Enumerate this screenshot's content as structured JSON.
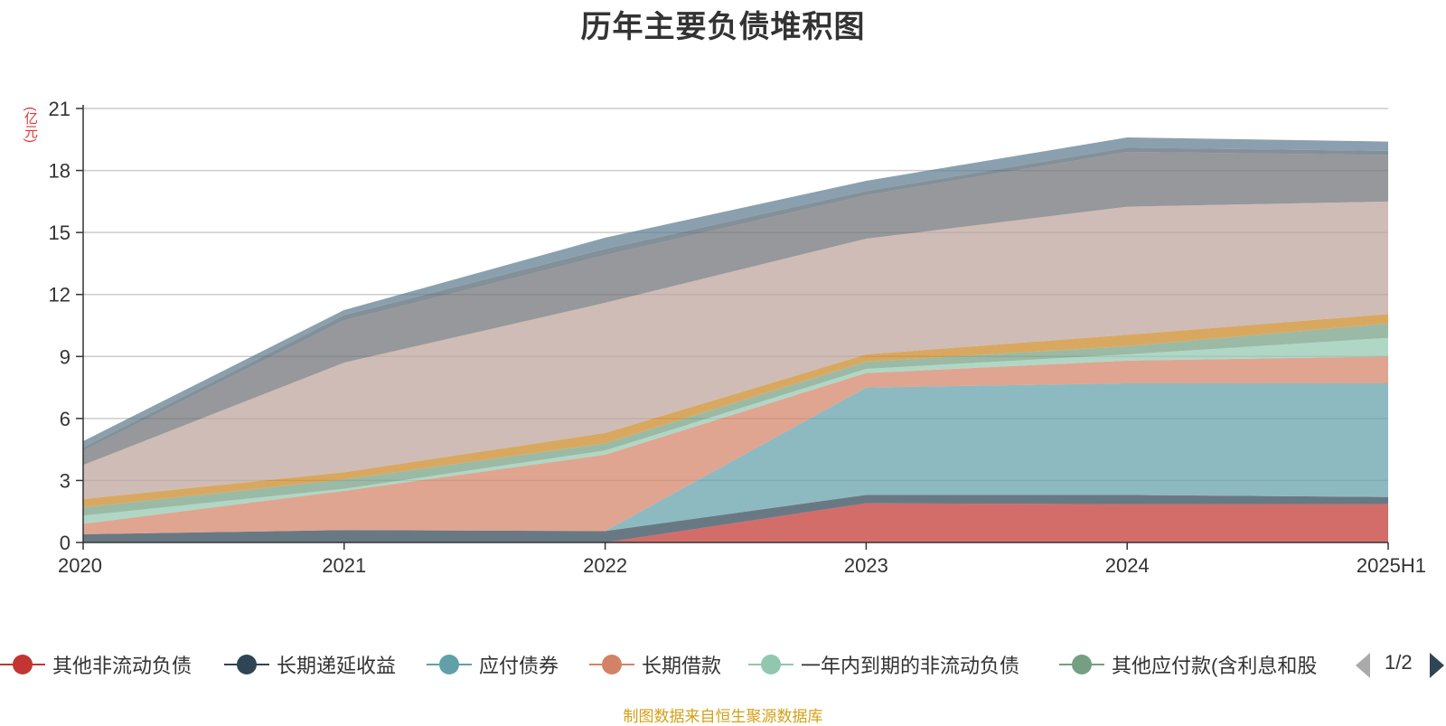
{
  "chart_data": {
    "type": "area",
    "title": "历年主要负债堆积图",
    "ylabel": "(亿元)",
    "categories": [
      "2020",
      "2021",
      "2022",
      "2023",
      "2024",
      "2025H1"
    ],
    "y_ticks": [
      "0",
      "3",
      "6",
      "9",
      "12",
      "15",
      "18",
      "21"
    ],
    "ylim": [
      0,
      21
    ],
    "stacked": true,
    "grid": true,
    "series": [
      {
        "name": "其他非流动负债",
        "color": "#c23531",
        "values": [
          0,
          0,
          0,
          1.9,
          1.85,
          1.85
        ]
      },
      {
        "name": "长期递延收益",
        "color": "#2f4554",
        "values": [
          0.4,
          0.6,
          0.55,
          0.4,
          0.45,
          0.35
        ]
      },
      {
        "name": "应付债券",
        "color": "#61a0a8",
        "values": [
          0,
          0,
          0,
          5.2,
          5.4,
          5.5
        ]
      },
      {
        "name": "长期借款",
        "color": "#d48265",
        "values": [
          0.5,
          1.9,
          3.7,
          0.7,
          1.1,
          1.3
        ]
      },
      {
        "name": "一年内到期的非流动负债",
        "color": "#91c7ae",
        "values": [
          0.4,
          0.1,
          0.2,
          0.2,
          0.3,
          0.9
        ]
      },
      {
        "name": "其他应付款(含利息和股",
        "color": "#749f83",
        "values": [
          0.4,
          0.45,
          0.35,
          0.35,
          0.4,
          0.7
        ]
      },
      {
        "name": "",
        "color": "#ca8622",
        "values": [
          0.4,
          0.35,
          0.5,
          0.35,
          0.55,
          0.45
        ]
      },
      {
        "name": "",
        "color": "#bda29a",
        "values": [
          1.65,
          5.3,
          6.3,
          5.6,
          6.2,
          5.45
        ]
      },
      {
        "name": "",
        "color": "#6e7074",
        "values": [
          0.7,
          2.05,
          2.3,
          2.1,
          2.65,
          2.25
        ]
      },
      {
        "name": "",
        "color": "#546570",
        "values": [
          0.15,
          0.25,
          0.3,
          0.2,
          0.2,
          0.2
        ]
      },
      {
        "name": "",
        "color": "#c4ccd3",
        "values": [
          0,
          0,
          0,
          0,
          0,
          0
        ]
      },
      {
        "name": "",
        "color": "#5e7c8f",
        "values": [
          0.3,
          0.25,
          0.55,
          0.5,
          0.5,
          0.45
        ]
      }
    ]
  },
  "legend": {
    "visible_count": 6,
    "page_indicator": "1/2"
  },
  "source_note": "制图数据来自恒生聚源数据库"
}
